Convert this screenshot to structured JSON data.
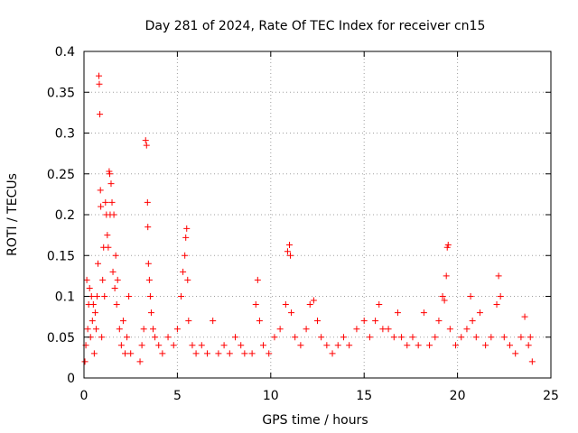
{
  "chart_data": {
    "type": "scatter",
    "title": "Day 281 of 2024, Rate Of TEC Index for receiver cn15",
    "xlabel": "GPS time / hours",
    "ylabel": "ROTI / TECUs",
    "xlim": [
      0,
      25
    ],
    "ylim": [
      0,
      0.4
    ],
    "xticks": [
      0,
      5,
      10,
      15,
      20,
      25
    ],
    "xtick_labels": [
      "0",
      "5",
      "10",
      "15",
      "20",
      "25"
    ],
    "yticks": [
      0,
      0.05,
      0.1,
      0.15,
      0.2,
      0.25,
      0.3,
      0.35,
      0.4
    ],
    "ytick_labels": [
      "0",
      "0.05",
      "0.1",
      "0.15",
      "0.2",
      "0.25",
      "0.3",
      "0.35",
      "0.4"
    ],
    "grid": true,
    "marker": "plus",
    "color": "#ff0000",
    "series": [
      {
        "name": "ROTI",
        "points": [
          [
            0.05,
            0.02
          ],
          [
            0.1,
            0.04
          ],
          [
            0.15,
            0.12
          ],
          [
            0.2,
            0.06
          ],
          [
            0.25,
            0.09
          ],
          [
            0.3,
            0.11
          ],
          [
            0.35,
            0.05
          ],
          [
            0.4,
            0.1
          ],
          [
            0.45,
            0.07
          ],
          [
            0.5,
            0.09
          ],
          [
            0.55,
            0.03
          ],
          [
            0.6,
            0.08
          ],
          [
            0.65,
            0.06
          ],
          [
            0.7,
            0.1
          ],
          [
            0.75,
            0.14
          ],
          [
            0.8,
            0.37
          ],
          [
            0.82,
            0.36
          ],
          [
            0.85,
            0.323
          ],
          [
            0.88,
            0.23
          ],
          [
            0.9,
            0.21
          ],
          [
            0.95,
            0.05
          ],
          [
            1.0,
            0.12
          ],
          [
            1.05,
            0.16
          ],
          [
            1.1,
            0.1
          ],
          [
            1.15,
            0.215
          ],
          [
            1.2,
            0.2
          ],
          [
            1.25,
            0.175
          ],
          [
            1.3,
            0.16
          ],
          [
            1.35,
            0.253
          ],
          [
            1.38,
            0.25
          ],
          [
            1.4,
            0.2
          ],
          [
            1.45,
            0.238
          ],
          [
            1.5,
            0.215
          ],
          [
            1.55,
            0.13
          ],
          [
            1.6,
            0.2
          ],
          [
            1.65,
            0.11
          ],
          [
            1.7,
            0.15
          ],
          [
            1.75,
            0.09
          ],
          [
            1.8,
            0.12
          ],
          [
            1.9,
            0.06
          ],
          [
            2.0,
            0.04
          ],
          [
            2.1,
            0.07
          ],
          [
            2.2,
            0.03
          ],
          [
            2.3,
            0.05
          ],
          [
            2.4,
            0.1
          ],
          [
            2.5,
            0.03
          ],
          [
            3.0,
            0.02
          ],
          [
            3.1,
            0.04
          ],
          [
            3.2,
            0.06
          ],
          [
            3.3,
            0.291
          ],
          [
            3.35,
            0.285
          ],
          [
            3.4,
            0.215
          ],
          [
            3.42,
            0.185
          ],
          [
            3.45,
            0.14
          ],
          [
            3.5,
            0.12
          ],
          [
            3.55,
            0.1
          ],
          [
            3.6,
            0.08
          ],
          [
            3.7,
            0.06
          ],
          [
            3.8,
            0.05
          ],
          [
            4.0,
            0.04
          ],
          [
            4.2,
            0.03
          ],
          [
            4.5,
            0.05
          ],
          [
            4.8,
            0.04
          ],
          [
            5.0,
            0.06
          ],
          [
            5.2,
            0.1
          ],
          [
            5.3,
            0.13
          ],
          [
            5.4,
            0.15
          ],
          [
            5.45,
            0.172
          ],
          [
            5.5,
            0.183
          ],
          [
            5.55,
            0.12
          ],
          [
            5.6,
            0.07
          ],
          [
            5.8,
            0.04
          ],
          [
            6.0,
            0.03
          ],
          [
            6.3,
            0.04
          ],
          [
            6.6,
            0.03
          ],
          [
            6.9,
            0.07
          ],
          [
            7.2,
            0.03
          ],
          [
            7.5,
            0.04
          ],
          [
            7.8,
            0.03
          ],
          [
            8.1,
            0.05
          ],
          [
            8.4,
            0.04
          ],
          [
            8.6,
            0.03
          ],
          [
            9.0,
            0.03
          ],
          [
            9.2,
            0.09
          ],
          [
            9.3,
            0.12
          ],
          [
            9.4,
            0.07
          ],
          [
            9.6,
            0.04
          ],
          [
            9.9,
            0.03
          ],
          [
            10.2,
            0.05
          ],
          [
            10.5,
            0.06
          ],
          [
            10.8,
            0.09
          ],
          [
            10.9,
            0.155
          ],
          [
            11.0,
            0.163
          ],
          [
            11.05,
            0.15
          ],
          [
            11.1,
            0.08
          ],
          [
            11.3,
            0.05
          ],
          [
            11.6,
            0.04
          ],
          [
            11.9,
            0.06
          ],
          [
            12.1,
            0.09
          ],
          [
            12.3,
            0.095
          ],
          [
            12.5,
            0.07
          ],
          [
            12.7,
            0.05
          ],
          [
            13.0,
            0.04
          ],
          [
            13.3,
            0.03
          ],
          [
            13.6,
            0.04
          ],
          [
            13.9,
            0.05
          ],
          [
            14.2,
            0.04
          ],
          [
            14.6,
            0.06
          ],
          [
            15.0,
            0.07
          ],
          [
            15.3,
            0.05
          ],
          [
            15.6,
            0.07
          ],
          [
            15.8,
            0.09
          ],
          [
            16.0,
            0.06
          ],
          [
            16.3,
            0.06
          ],
          [
            16.6,
            0.05
          ],
          [
            16.8,
            0.08
          ],
          [
            17.0,
            0.05
          ],
          [
            17.3,
            0.04
          ],
          [
            17.6,
            0.05
          ],
          [
            17.9,
            0.04
          ],
          [
            18.2,
            0.08
          ],
          [
            18.5,
            0.04
          ],
          [
            18.8,
            0.05
          ],
          [
            19.0,
            0.07
          ],
          [
            19.2,
            0.1
          ],
          [
            19.3,
            0.095
          ],
          [
            19.4,
            0.125
          ],
          [
            19.45,
            0.16
          ],
          [
            19.5,
            0.163
          ],
          [
            19.6,
            0.06
          ],
          [
            19.9,
            0.04
          ],
          [
            20.2,
            0.05
          ],
          [
            20.5,
            0.06
          ],
          [
            20.7,
            0.1
          ],
          [
            20.8,
            0.07
          ],
          [
            21.0,
            0.05
          ],
          [
            21.2,
            0.08
          ],
          [
            21.5,
            0.04
          ],
          [
            21.8,
            0.05
          ],
          [
            22.1,
            0.09
          ],
          [
            22.2,
            0.125
          ],
          [
            22.3,
            0.1
          ],
          [
            22.5,
            0.05
          ],
          [
            22.8,
            0.04
          ],
          [
            23.1,
            0.03
          ],
          [
            23.4,
            0.05
          ],
          [
            23.6,
            0.075
          ],
          [
            23.8,
            0.04
          ],
          [
            23.9,
            0.05
          ],
          [
            24.0,
            0.02
          ]
        ]
      }
    ]
  }
}
